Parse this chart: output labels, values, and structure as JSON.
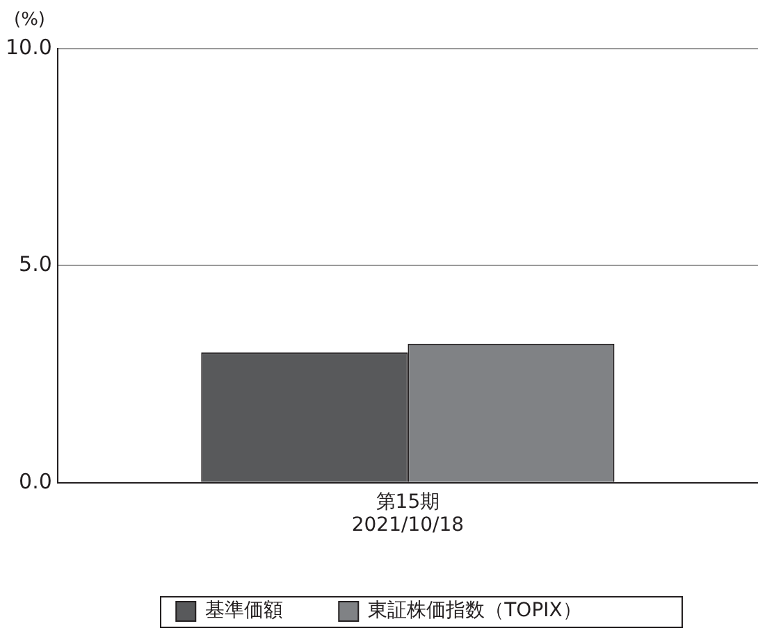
{
  "chart_data": {
    "type": "bar",
    "ylabel": "(%)",
    "categories": [
      "第15期\n2021/10/18"
    ],
    "series": [
      {
        "name": "基準価額",
        "color": "#58595b",
        "values": [
          3.0
        ]
      },
      {
        "name": "東証株価指数（TOPIX）",
        "color": "#808285",
        "values": [
          3.2
        ]
      }
    ],
    "ylim": [
      0,
      10
    ],
    "yticks": [
      {
        "value": 0,
        "label": "0.0"
      },
      {
        "value": 5,
        "label": "5.0"
      },
      {
        "value": 10,
        "label": "10.0"
      }
    ],
    "grid": "y",
    "legend": "bottom"
  }
}
